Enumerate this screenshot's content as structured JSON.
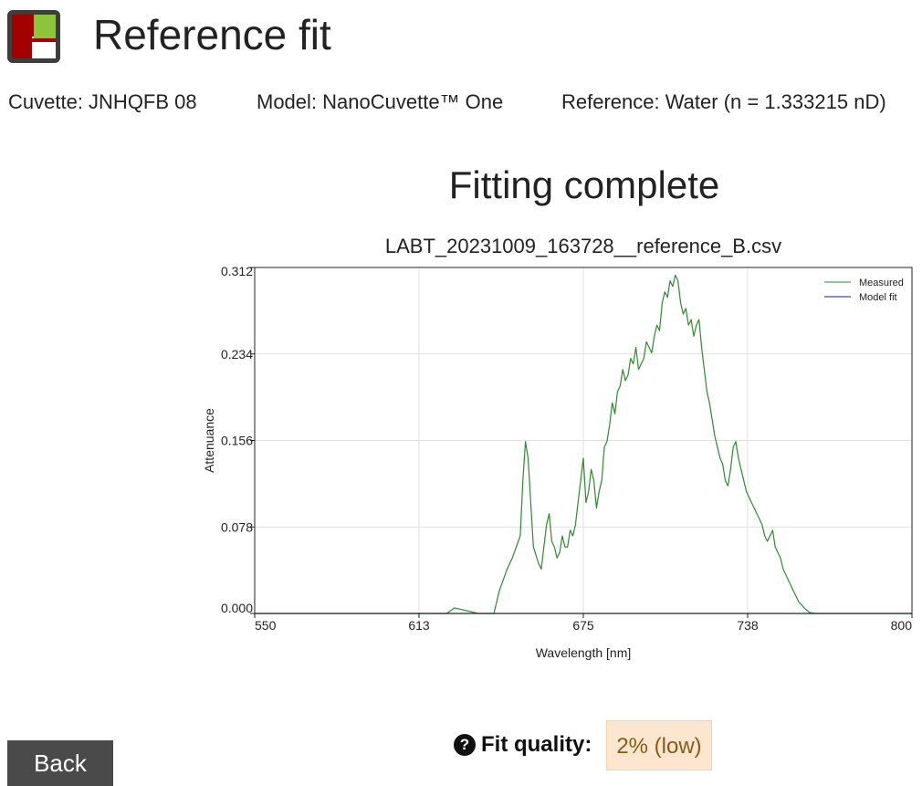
{
  "header": {
    "title": "Reference fit"
  },
  "info": {
    "cuvette": "Cuvette: JNHQFB 08",
    "model": "Model: NanoCuvette™ One",
    "reference": "Reference: Water (n = 1.333215 nD)"
  },
  "status": {
    "headline": "Fitting complete"
  },
  "fit_quality": {
    "label": "Fit quality:",
    "value": "2% (low)",
    "help_icon": "question-circle-icon"
  },
  "actions": {
    "back_label": "Back"
  },
  "colors": {
    "measured": "#2e8b2e",
    "model_fit": "#1a1a8c",
    "badge_bg": "#fce6cf",
    "badge_text": "#8a5a14",
    "button_bg": "#4a4a4a"
  },
  "chart_data": {
    "type": "line",
    "title": "LABT_20231009_163728__reference_B.csv",
    "xlabel": "Wavelength [nm]",
    "ylabel": "Attenuance",
    "xlim": [
      550,
      800
    ],
    "ylim": [
      0,
      0.312
    ],
    "x_ticks": [
      "550",
      "613",
      "675",
      "738",
      "800"
    ],
    "y_ticks": [
      "0.000",
      "0.078",
      "0.156",
      "0.234",
      "0.312"
    ],
    "grid": true,
    "legend": "top-right",
    "series": [
      {
        "name": "Measured",
        "color": "#2e8b2e",
        "x": [
          550,
          620,
          623,
          626,
          635,
          641,
          643,
          646,
          648,
          651,
          652,
          653,
          654,
          655,
          656,
          658,
          659,
          660,
          661,
          662,
          663,
          664,
          665,
          666,
          667,
          668,
          669,
          670,
          671,
          672,
          673,
          674,
          675,
          676,
          677,
          678,
          679,
          680,
          681,
          682,
          683,
          684,
          685,
          686,
          687,
          688,
          689,
          690,
          691,
          692,
          693,
          694,
          695,
          696,
          697,
          698,
          699,
          700,
          701,
          702,
          703,
          704,
          705,
          706,
          707,
          708,
          709,
          710,
          711,
          712,
          713,
          714,
          715,
          716,
          717,
          718,
          719,
          720,
          721,
          722,
          723,
          724,
          725,
          726,
          727,
          728,
          729,
          730,
          731,
          732,
          733,
          734,
          735,
          736,
          737,
          738,
          739,
          740,
          741,
          742,
          743,
          744,
          745,
          746,
          747,
          748,
          749,
          750,
          751,
          752,
          753,
          754,
          755,
          756,
          757,
          758,
          759,
          760,
          761,
          763,
          800
        ],
        "values": [
          0,
          0,
          0,
          0.005,
          0,
          0,
          0.02,
          0.04,
          0.05,
          0.07,
          0.12,
          0.155,
          0.14,
          0.1,
          0.06,
          0.045,
          0.04,
          0.06,
          0.08,
          0.09,
          0.065,
          0.06,
          0.05,
          0.055,
          0.07,
          0.06,
          0.06,
          0.075,
          0.07,
          0.08,
          0.1,
          0.12,
          0.14,
          0.1,
          0.11,
          0.13,
          0.12,
          0.095,
          0.11,
          0.12,
          0.15,
          0.155,
          0.17,
          0.19,
          0.18,
          0.2,
          0.205,
          0.22,
          0.21,
          0.215,
          0.23,
          0.225,
          0.24,
          0.22,
          0.225,
          0.23,
          0.245,
          0.24,
          0.235,
          0.25,
          0.26,
          0.255,
          0.28,
          0.29,
          0.285,
          0.3,
          0.295,
          0.305,
          0.3,
          0.28,
          0.27,
          0.275,
          0.26,
          0.265,
          0.25,
          0.26,
          0.265,
          0.24,
          0.22,
          0.2,
          0.19,
          0.175,
          0.16,
          0.15,
          0.14,
          0.135,
          0.12,
          0.115,
          0.13,
          0.15,
          0.155,
          0.14,
          0.13,
          0.12,
          0.11,
          0.105,
          0.1,
          0.095,
          0.09,
          0.085,
          0.08,
          0.07,
          0.065,
          0.07,
          0.075,
          0.06,
          0.055,
          0.05,
          0.04,
          0.035,
          0.03,
          0.025,
          0.02,
          0.015,
          0.01,
          0.008,
          0.005,
          0.003,
          0.001,
          0,
          0
        ]
      },
      {
        "name": "Model fit",
        "color": "#1a1a8c",
        "x": [
          550,
          800
        ],
        "values": [
          0,
          0
        ]
      }
    ]
  }
}
